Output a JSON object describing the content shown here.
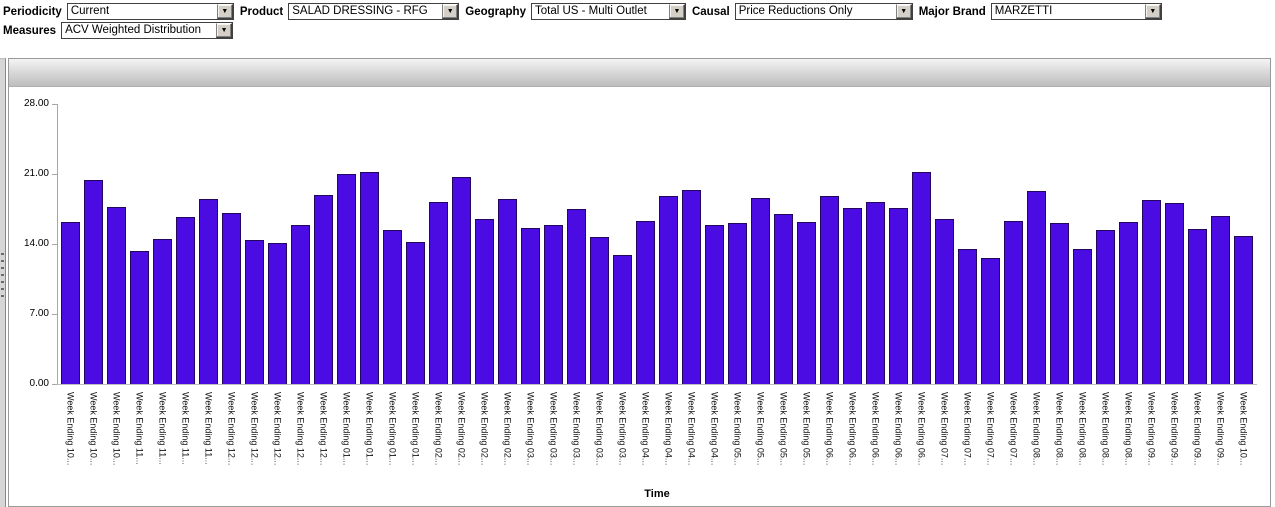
{
  "filters": {
    "periodicity": {
      "label": "Periodicity",
      "value": "Current"
    },
    "product": {
      "label": "Product",
      "value": "SALAD DRESSING - RFG"
    },
    "geography": {
      "label": "Geography",
      "value": "Total US - Multi Outlet"
    },
    "causal": {
      "label": "Causal",
      "value": "Price Reductions Only"
    },
    "major_brand": {
      "label": "Major Brand",
      "value": "MARZETTI"
    },
    "measures": {
      "label": "Measures",
      "value": "ACV Weighted Distribution"
    }
  },
  "icons": {
    "dropdown_arrow": "▼"
  },
  "chart_data": {
    "type": "bar",
    "title": "",
    "xlabel": "Time",
    "ylabel": "",
    "ylim": [
      0,
      28
    ],
    "y_ticks": [
      "28.00",
      "21.00",
      "14.00",
      "7.00",
      "0.00"
    ],
    "grid": false,
    "legend": "none",
    "bar_color": "#4b0ce4",
    "categories": [
      "Week Ending 10...",
      "Week Ending 10...",
      "Week Ending 10...",
      "Week Ending 11...",
      "Week Ending 11...",
      "Week Ending 11...",
      "Week Ending 11...",
      "Week Ending 12...",
      "Week Ending 12...",
      "Week Ending 12...",
      "Week Ending 12...",
      "Week Ending 12...",
      "Week Ending 01...",
      "Week Ending 01...",
      "Week Ending 01...",
      "Week Ending 01...",
      "Week Ending 02...",
      "Week Ending 02...",
      "Week Ending 02...",
      "Week Ending 02...",
      "Week Ending 03...",
      "Week Ending 03...",
      "Week Ending 03...",
      "Week Ending 03...",
      "Week Ending 03...",
      "Week Ending 04...",
      "Week Ending 04...",
      "Week Ending 04...",
      "Week Ending 04...",
      "Week Ending 05...",
      "Week Ending 05...",
      "Week Ending 05...",
      "Week Ending 05...",
      "Week Ending 06...",
      "Week Ending 06...",
      "Week Ending 06...",
      "Week Ending 06...",
      "Week Ending 06...",
      "Week Ending 07...",
      "Week Ending 07...",
      "Week Ending 07...",
      "Week Ending 07...",
      "Week Ending 08...",
      "Week Ending 08...",
      "Week Ending 08...",
      "Week Ending 08...",
      "Week Ending 08...",
      "Week Ending 09...",
      "Week Ending 09...",
      "Week Ending 09...",
      "Week Ending 09...",
      "Week Ending 10..."
    ],
    "values": [
      16.2,
      20.4,
      17.7,
      13.3,
      14.5,
      16.7,
      18.5,
      17.1,
      14.4,
      14.1,
      15.9,
      18.9,
      21.0,
      21.2,
      15.4,
      14.2,
      18.2,
      20.7,
      16.5,
      18.5,
      15.6,
      15.9,
      17.5,
      14.7,
      12.9,
      16.3,
      18.8,
      19.4,
      15.9,
      16.1,
      18.6,
      17.0,
      16.2,
      18.8,
      17.6,
      18.2,
      17.6,
      21.2,
      16.5,
      13.5,
      12.6,
      16.3,
      19.3,
      16.1,
      13.5,
      15.4,
      16.2,
      18.4,
      18.1,
      15.5,
      16.8,
      14.8
    ]
  }
}
